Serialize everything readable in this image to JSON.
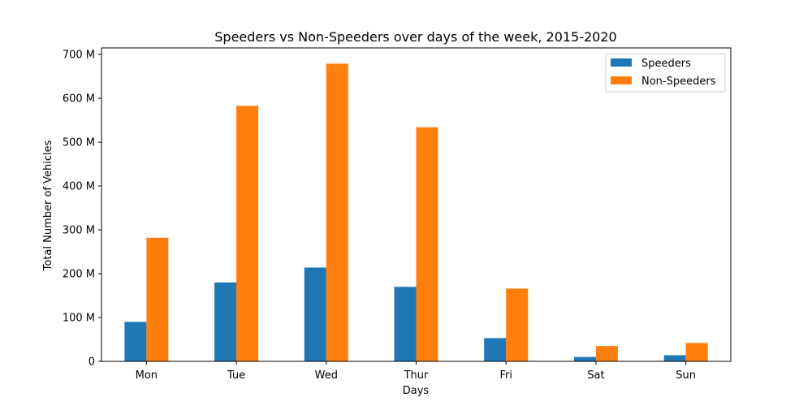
{
  "chart_data": {
    "type": "bar",
    "title": "Speeders vs Non-Speeders over days of the week, 2015-2020",
    "xlabel": "Days",
    "ylabel": "Total Number of Vehicles",
    "categories": [
      "Mon",
      "Tue",
      "Wed",
      "Thur",
      "Fri",
      "Sat",
      "Sun"
    ],
    "series": [
      {
        "name": "Speeders",
        "color": "#1f77b4",
        "values": [
          90,
          180,
          214,
          170,
          53,
          10,
          14
        ]
      },
      {
        "name": "Non-Speeders",
        "color": "#ff7f0e",
        "values": [
          282,
          583,
          679,
          534,
          166,
          35,
          42
        ]
      }
    ],
    "ylim": [
      0,
      715
    ],
    "y_ticks": [
      {
        "value": 0,
        "label": "0"
      },
      {
        "value": 100,
        "label": "100 M"
      },
      {
        "value": 200,
        "label": "200 M"
      },
      {
        "value": 300,
        "label": "300 M"
      },
      {
        "value": 400,
        "label": "400 M"
      },
      {
        "value": 500,
        "label": "500 M"
      },
      {
        "value": 600,
        "label": "600 M"
      },
      {
        "value": 700,
        "label": "700 M"
      }
    ],
    "y_unit": "millions of vehicles",
    "grid": false,
    "legend_position": "top-right"
  }
}
